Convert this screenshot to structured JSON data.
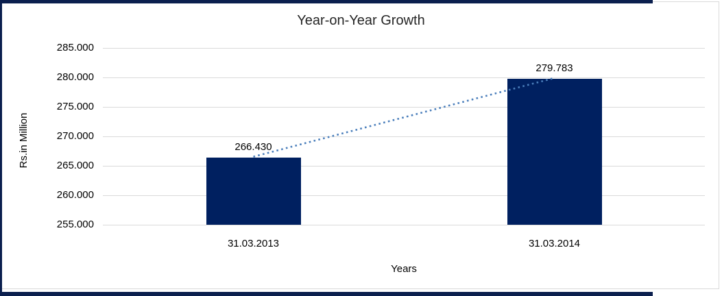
{
  "chart_data": {
    "type": "bar",
    "title": "Year-on-Year Growth",
    "xlabel": "Years",
    "ylabel": "Rs.in Million",
    "categories": [
      "31.03.2013",
      "31.03.2014"
    ],
    "values": [
      266.43,
      279.783
    ],
    "data_labels": [
      "266.430",
      "279.783"
    ],
    "y_ticks": [
      "285.000",
      "280.000",
      "275.000",
      "270.000",
      "265.000",
      "260.000",
      "255.000"
    ],
    "y_tick_values": [
      285,
      280,
      275,
      270,
      265,
      260,
      255
    ],
    "ylim": [
      255,
      285
    ],
    "grid": true,
    "legend": "none",
    "trendline": {
      "style": "dotted",
      "connects": [
        "266.430",
        "279.783"
      ]
    },
    "colors": {
      "bar": "#002060",
      "trendline": "#4A7EBB",
      "gridline": "#D9D9D9",
      "outer_border": "#0B1F4E",
      "title_text": "#262626",
      "axis_text": "#000000"
    }
  }
}
